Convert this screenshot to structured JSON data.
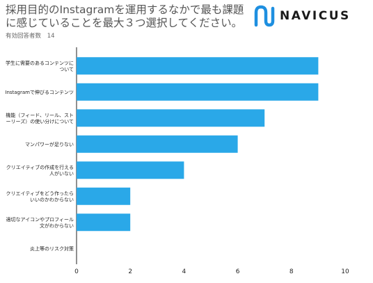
{
  "header": {
    "title": "採用目的のInstagramを運用するなかで最も課題に感じていることを最大３つ選択してください。",
    "respondents_label": "有効回答者数",
    "respondents_count": "14"
  },
  "brand": {
    "name": "NAVICUS",
    "logo_icon": "navicus-wave-icon",
    "accent_color": "#1e8fe0"
  },
  "chart_data": {
    "type": "bar",
    "orientation": "horizontal",
    "bar_color": "#2aa8e8",
    "categories": [
      "学生に需要のあるコンテンツに\nついて",
      "Instagramで伸びるコンテンツ",
      "機能（フィード、リール、スト\nーリーズ）の使い分けについて",
      "マンパワーが足りない",
      "クリエイティブの作成を行える\n人がいない",
      "クリエイティブをどう作ったら\nいいのかわからない",
      "適切なアイコンやプロフィール\n文がわからない",
      "炎上等のリスク対策"
    ],
    "values": [
      9,
      9,
      7,
      6,
      4,
      2,
      2,
      0
    ],
    "xlim": [
      0,
      10
    ],
    "xticks": [
      0,
      2,
      4,
      6,
      8,
      10
    ],
    "grid": false,
    "legend": "none",
    "title": "",
    "xlabel": "",
    "ylabel": ""
  }
}
